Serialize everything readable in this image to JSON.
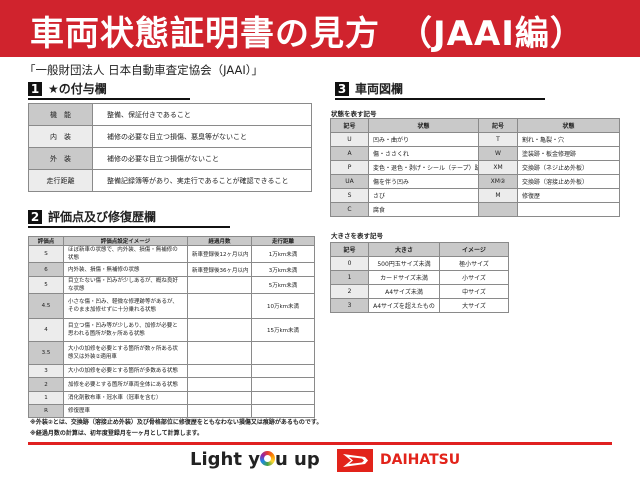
{
  "header": {
    "title": "車両状態証明書の見方　（JAAI編）",
    "subtitle": "「一般財団法人 日本自動車査定協会（JAAI）」"
  },
  "section1": {
    "number": "1",
    "title": "★の付与欄",
    "rows": [
      {
        "key": "機　能",
        "value": "整備、保証付きであること"
      },
      {
        "key": "内　装",
        "value": "補修の必要な目立つ損傷、悪臭等がないこと"
      },
      {
        "key": "外　装",
        "value": "補修の必要な目立つ損傷がないこと"
      },
      {
        "key": "走行距離",
        "value": "整備記録簿等があり、実走行であることが確認できること"
      }
    ]
  },
  "section2": {
    "number": "2",
    "title": "評価点及び修復歴欄",
    "headers": [
      "評価点",
      "評価点設定イメージ",
      "経過月数",
      "走行距離"
    ],
    "rows": [
      [
        "S",
        "ほぼ新車の状態で、内外装、損傷・無補修の状態",
        "新車登録後12ヶ月以内",
        "1万km未満"
      ],
      [
        "6",
        "内外装、損傷・無補修の状態",
        "新車登録後36ヶ月以内",
        "3万km未満"
      ],
      [
        "5",
        "目立たない傷・凹みが少しあるが、概ね良好な状態",
        "",
        "5万km未満"
      ],
      [
        "4.5",
        "小さな傷・凹み、軽微な修理跡等があるが、そのまま加修せずに十分乗れる状態",
        "",
        "10万km未満"
      ],
      [
        "4",
        "目立つ傷・凹み等が少しあり、加修が必要と思われる箇所が数ヶ所ある状態",
        "",
        "15万km未満"
      ],
      [
        "3.5",
        "大小の加修を必要とする箇所が数ヶ所ある状態又は外装②適用車",
        "",
        ""
      ],
      [
        "3",
        "大小の加修を必要とする箇所が多数ある状態",
        "",
        ""
      ],
      [
        "2",
        "加修を必要とする箇所が車両全体にある状態",
        "",
        ""
      ],
      [
        "1",
        "消化剤散布車・冠水車（冠車を含む）",
        "",
        ""
      ],
      [
        "R",
        "修復歴車",
        "",
        ""
      ]
    ],
    "notes": [
      "※外装②とは、交換跡（溶接止め外装）及び骨格部位に修復歴をともなわない損傷又は痕跡があるものです。",
      "※経過月数の計算は、初年度登録月を一ヶ月として計算します。"
    ]
  },
  "section3": {
    "number": "3",
    "title": "車両図欄",
    "condition_caption": "状態を表す記号",
    "condition_headers": [
      "記号",
      "状態",
      "記号",
      "状態"
    ],
    "condition_rows": [
      [
        "U",
        "凹み・曲がり",
        "T",
        "割れ・亀裂・穴"
      ],
      [
        "A",
        "傷・ささくれ",
        "W",
        "塗装跡・板金修理跡"
      ],
      [
        "P",
        "変色・退色・剥げ・シール（テープ）跡",
        "XM",
        "交換跡（ネジ止め外板）"
      ],
      [
        "UA",
        "傷を伴う凹み",
        "XM②",
        "交換跡（溶接止め外板）"
      ],
      [
        "S",
        "さび",
        "M",
        "修復歴"
      ],
      [
        "C",
        "腐食",
        "",
        ""
      ]
    ],
    "size_caption": "大きさを表す記号",
    "size_headers": [
      "記号",
      "大きさ",
      "イメージ"
    ],
    "size_rows": [
      [
        "0",
        "500円玉サイズ未満",
        "極小サイズ"
      ],
      [
        "1",
        "カードサイズ未満",
        "小サイズ"
      ],
      [
        "2",
        "A4サイズ未満",
        "中サイズ"
      ],
      [
        "3",
        "A4サイズを超えたもの",
        "大サイズ"
      ]
    ]
  },
  "footer": {
    "slogan": [
      "Light y",
      "u up"
    ],
    "brand": "DAIHATSU",
    "accent": "#d0232d"
  }
}
